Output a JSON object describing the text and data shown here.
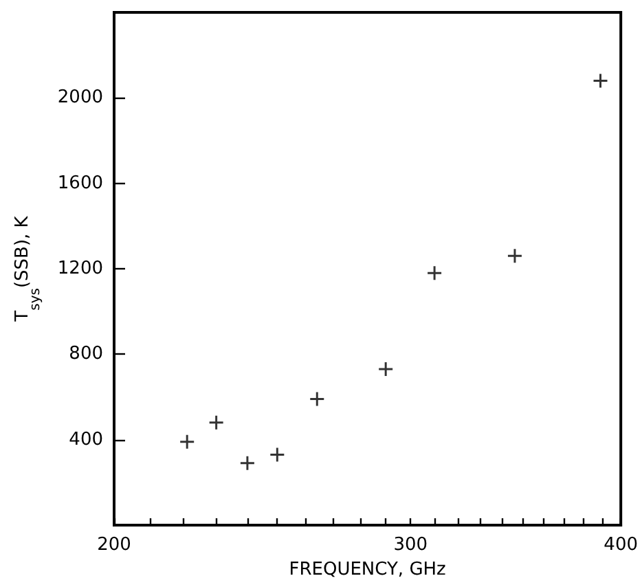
{
  "chart_data": {
    "type": "scatter",
    "xlabel": "FREQUENCY, GHz",
    "ylabel": "T$_{sys}$(SSB), K",
    "x": [
      221,
      230,
      240,
      250,
      264,
      290,
      310,
      346,
      389
    ],
    "values": [
      390,
      480,
      290,
      330,
      590,
      730,
      1180,
      1260,
      2080
    ],
    "color": "#000000",
    "marker": "cross",
    "log": "x",
    "xlim": [
      200,
      400
    ],
    "xticks": [
      200,
      {
        "value": 210,
        "label": null
      },
      {
        "value": 220,
        "label": null
      },
      {
        "value": 230,
        "label": null
      },
      {
        "value": 240,
        "label": null
      },
      {
        "value": 250,
        "label": null
      },
      {
        "value": 260,
        "label": null
      },
      {
        "value": 270,
        "label": null
      },
      {
        "value": 280,
        "label": null
      },
      {
        "value": 290,
        "label": null
      },
      300,
      {
        "value": 310,
        "label": null
      },
      {
        "value": 320,
        "label": null
      },
      {
        "value": 330,
        "label": null
      },
      {
        "value": 340,
        "label": null
      },
      {
        "value": 350,
        "label": null
      },
      {
        "value": 360,
        "label": null
      },
      {
        "value": 370,
        "label": null
      },
      {
        "value": 380,
        "label": null
      },
      {
        "value": 390,
        "label": null
      },
      400
    ],
    "ylim": [
      0,
      2400
    ],
    "yticks": [
      400,
      800,
      1200,
      1600,
      2000
    ]
  }
}
